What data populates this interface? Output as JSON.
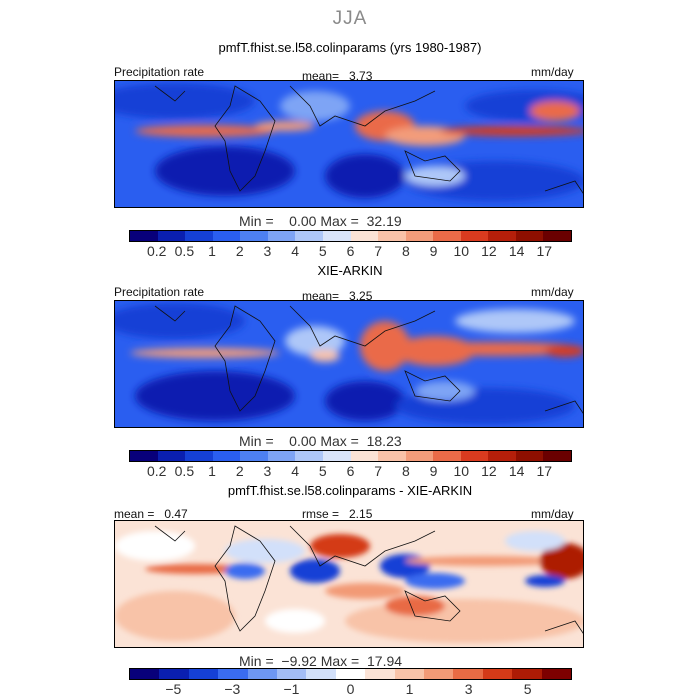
{
  "season": "JJA",
  "colors": {
    "precip_scale": [
      "#08007a",
      "#0a1fb0",
      "#1540d6",
      "#2a5ef0",
      "#4d80f2",
      "#7ea4f5",
      "#aec7f8",
      "#d9e4fa",
      "#fbe3d6",
      "#f9c2a8",
      "#f39c7a",
      "#ea6b48",
      "#d93b1f",
      "#b51f0a",
      "#8e0f00",
      "#6a0000"
    ],
    "diff_scale": [
      "#08007a",
      "#0a1fb0",
      "#1540d6",
      "#3a6cf0",
      "#6e97f3",
      "#a3bdf6",
      "#d2e0fa",
      "#ffffff",
      "#fbe3d6",
      "#f8c3a8",
      "#f29a76",
      "#e86b44",
      "#d43a18",
      "#ad1b05",
      "#7d0000"
    ]
  },
  "panels": [
    {
      "title": "pmfT.fhist.se.l58.colinparams (yrs 1980-1987)",
      "left_label": "Precipitation rate",
      "center_label": "mean=   3.73",
      "right_label": "mm/day",
      "minmax": "Min =    0.00 Max =  32.19",
      "ticks": [
        "0.2",
        "0.5",
        "1",
        "2",
        "3",
        "4",
        "5",
        "6",
        "7",
        "8",
        "9",
        "10",
        "12",
        "14",
        "17"
      ]
    },
    {
      "title": "XIE-ARKIN",
      "left_label": "Precipitation rate",
      "center_label": "mean=   3.25",
      "right_label": "mm/day",
      "minmax": "Min =    0.00 Max =  18.23",
      "ticks": [
        "0.2",
        "0.5",
        "1",
        "2",
        "3",
        "4",
        "5",
        "6",
        "7",
        "8",
        "9",
        "10",
        "12",
        "14",
        "17"
      ]
    },
    {
      "title": "pmfT.fhist.se.l58.colinparams - XIE-ARKIN",
      "left_label": "mean =   0.47",
      "center_label": "rmse =   2.15",
      "right_label": "mm/day",
      "minmax": "Min =  −9.92 Max =  17.94",
      "ticks": [
        "−5",
        "−3",
        "−1",
        "0",
        "1",
        "3",
        "5"
      ]
    }
  ]
}
